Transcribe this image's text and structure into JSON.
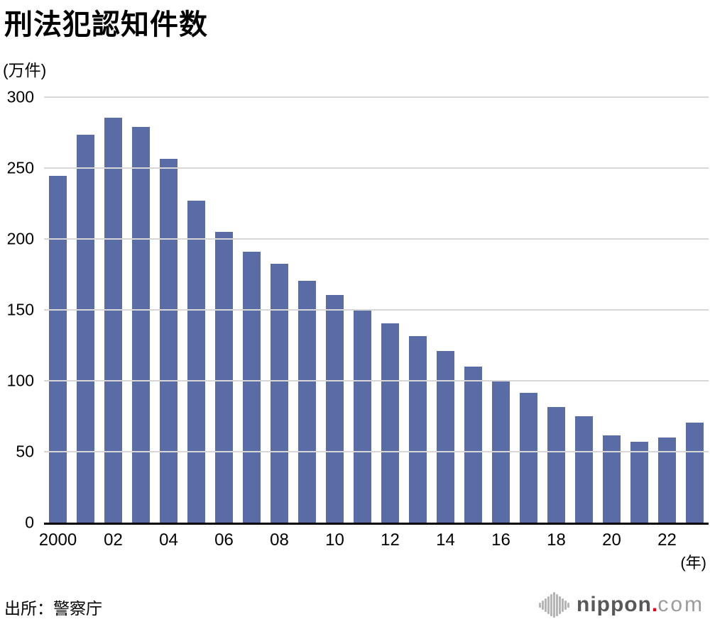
{
  "header": {
    "title": "刑法犯認知件数"
  },
  "axes": {
    "y_unit": "(万件)",
    "x_unit": "(年)",
    "y_ticks": [
      0,
      50,
      100,
      150,
      200,
      250,
      300
    ],
    "x_tick_labels": [
      "2000",
      "02",
      "04",
      "06",
      "08",
      "10",
      "12",
      "14",
      "16",
      "18",
      "20",
      "22"
    ]
  },
  "footer": {
    "source": "出所：警察庁",
    "logo": {
      "name": "nippon",
      "dot": ".",
      "domain": "com"
    }
  },
  "colors": {
    "bar": "#5a6ca6",
    "grid": "#d7d7d7",
    "axis": "#000000",
    "logo_dark": "#595757",
    "logo_light": "#9b9c9e",
    "logo_red": "#e60012",
    "logo_icon_gray": "#b5b5b6"
  },
  "chart_data": {
    "type": "bar",
    "title": "刑法犯認知件数",
    "ylabel": "(万件)",
    "xlabel": "(年)",
    "ylim": [
      0,
      300
    ],
    "grid": true,
    "legend": false,
    "categories": [
      2000,
      2001,
      2002,
      2003,
      2004,
      2005,
      2006,
      2007,
      2008,
      2009,
      2010,
      2011,
      2012,
      2013,
      2014,
      2015,
      2016,
      2017,
      2018,
      2019,
      2020,
      2021,
      2022,
      2023
    ],
    "values": [
      244.3,
      273.6,
      285.4,
      279.0,
      256.3,
      226.9,
      205.1,
      190.9,
      182.6,
      170.3,
      160.4,
      150.3,
      140.3,
      131.4,
      121.2,
      109.9,
      99.6,
      91.5,
      81.7,
      74.9,
      61.4,
      56.8,
      60.1,
      70.3
    ]
  }
}
